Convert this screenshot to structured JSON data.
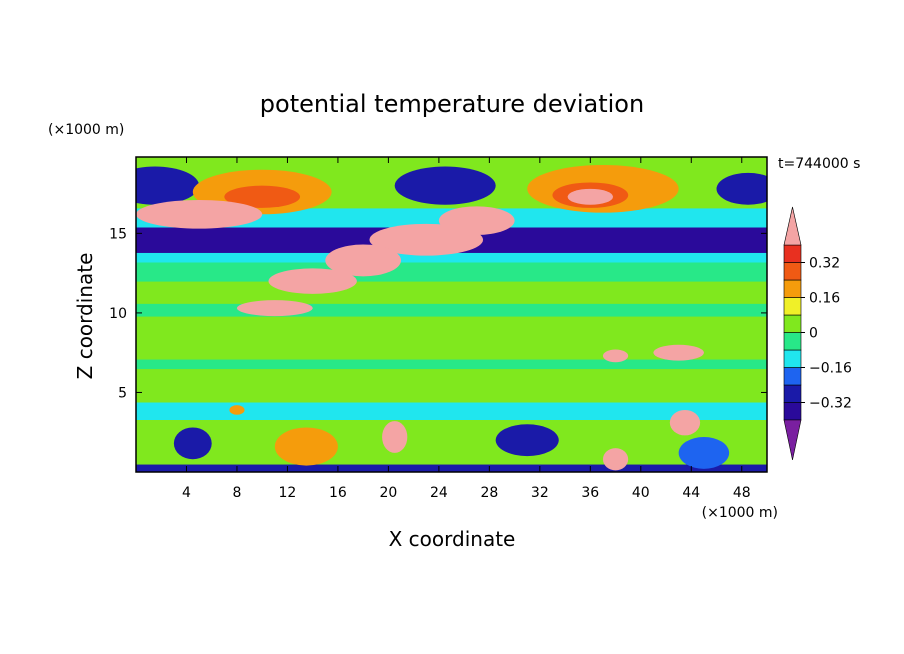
{
  "chart_data": {
    "type": "heatmap",
    "title": "potential temperature deviation",
    "time_label": "t=744000 s",
    "xlabel": "X coordinate",
    "ylabel": "Z coordinate",
    "x_unit": "(×1000 m)",
    "y_unit": "(×1000 m)",
    "xlim": [
      0,
      50
    ],
    "ylim": [
      0,
      19.8
    ],
    "x_ticks": [
      4,
      8,
      12,
      16,
      20,
      24,
      28,
      32,
      36,
      40,
      44,
      48
    ],
    "y_ticks": [
      5,
      10,
      15
    ],
    "colorbar": {
      "levels": [
        -0.4,
        -0.32,
        -0.24,
        -0.16,
        -0.08,
        0,
        0.08,
        0.16,
        0.24,
        0.32,
        0.4
      ],
      "tick_labels": [
        "0.32",
        "0.16",
        "0",
        "−0.16",
        "−0.32"
      ],
      "tick_values": [
        0.32,
        0.16,
        0,
        -0.16,
        -0.32
      ],
      "colors": [
        "#7a1fa0",
        "#2a0a9a",
        "#1a1aa8",
        "#1e64f0",
        "#20e6ee",
        "#28e888",
        "#80e81e",
        "#f0f028",
        "#f59c0c",
        "#f05a14",
        "#e83020",
        "#f4a4a4"
      ]
    },
    "bands": [
      {
        "z": [
          0,
          0.5
        ],
        "value": -0.3
      },
      {
        "z": [
          0.5,
          3.3
        ],
        "value": 0.05
      },
      {
        "z": [
          3.3,
          4.4
        ],
        "value": -0.1
      },
      {
        "z": [
          4.4,
          6.5
        ],
        "value": 0.06
      },
      {
        "z": [
          6.5,
          7.1
        ],
        "value": -0.06
      },
      {
        "z": [
          7.1,
          7.7
        ],
        "value": 0.02
      },
      {
        "z": [
          7.7,
          9.8
        ],
        "value": 0.06
      },
      {
        "z": [
          9.8,
          10.6
        ],
        "value": -0.03
      },
      {
        "z": [
          10.6,
          12.0
        ],
        "value": 0.06
      },
      {
        "z": [
          12.0,
          12.6
        ],
        "value": -0.07
      },
      {
        "z": [
          12.6,
          13.2
        ],
        "value": -0.02
      },
      {
        "z": [
          13.2,
          13.8
        ],
        "value": -0.1
      },
      {
        "z": [
          13.8,
          15.4
        ],
        "value": -0.34
      },
      {
        "z": [
          15.4,
          16.6
        ],
        "value": -0.14
      },
      {
        "z": [
          16.6,
          19.8
        ],
        "value": 0.06
      }
    ],
    "features": [
      {
        "x": 1.5,
        "z": 18.0,
        "rx": 3.5,
        "rz": 1.2,
        "value": -0.3
      },
      {
        "x": 24.5,
        "z": 18.0,
        "rx": 4.0,
        "rz": 1.2,
        "value": -0.3
      },
      {
        "x": 48.5,
        "z": 17.8,
        "rx": 2.5,
        "rz": 1.0,
        "value": -0.3
      },
      {
        "x": 10.0,
        "z": 17.6,
        "rx": 5.5,
        "rz": 1.4,
        "value": 0.18
      },
      {
        "x": 10.0,
        "z": 17.3,
        "rx": 3.0,
        "rz": 0.7,
        "value": 0.3
      },
      {
        "x": 37.0,
        "z": 17.8,
        "rx": 6.0,
        "rz": 1.5,
        "value": 0.18
      },
      {
        "x": 36.0,
        "z": 17.4,
        "rx": 3.0,
        "rz": 0.8,
        "value": 0.3
      },
      {
        "x": 36.0,
        "z": 17.3,
        "rx": 1.8,
        "rz": 0.5,
        "value": 0.4
      },
      {
        "x": 5.0,
        "z": 16.2,
        "rx": 5.0,
        "rz": 0.9,
        "value": 0.4
      },
      {
        "x": 27.0,
        "z": 15.8,
        "rx": 3.0,
        "rz": 0.9,
        "value": 0.4
      },
      {
        "x": 23.0,
        "z": 14.6,
        "rx": 4.5,
        "rz": 1.0,
        "value": 0.4
      },
      {
        "x": 18.0,
        "z": 13.3,
        "rx": 3.0,
        "rz": 1.0,
        "value": 0.4
      },
      {
        "x": 14.0,
        "z": 12.0,
        "rx": 3.5,
        "rz": 0.8,
        "value": 0.4
      },
      {
        "x": 11.0,
        "z": 10.3,
        "rx": 3.0,
        "rz": 0.5,
        "value": 0.4
      },
      {
        "x": 43.0,
        "z": 7.5,
        "rx": 2.0,
        "rz": 0.5,
        "value": 0.4
      },
      {
        "x": 38.0,
        "z": 7.3,
        "rx": 1.0,
        "rz": 0.4,
        "value": 0.4
      },
      {
        "x": 43.5,
        "z": 3.1,
        "rx": 1.2,
        "rz": 0.8,
        "value": 0.4
      },
      {
        "x": 20.5,
        "z": 2.2,
        "rx": 1.0,
        "rz": 1.0,
        "value": 0.4
      },
      {
        "x": 38.0,
        "z": 0.8,
        "rx": 1.0,
        "rz": 0.7,
        "value": 0.4
      },
      {
        "x": 4.5,
        "z": 1.8,
        "rx": 1.5,
        "rz": 1.0,
        "value": -0.3
      },
      {
        "x": 13.5,
        "z": 1.6,
        "rx": 2.5,
        "rz": 1.2,
        "value": 0.2
      },
      {
        "x": 31.0,
        "z": 2.0,
        "rx": 2.5,
        "rz": 1.0,
        "value": -0.3
      },
      {
        "x": 45.0,
        "z": 1.2,
        "rx": 2.0,
        "rz": 1.0,
        "value": -0.2
      },
      {
        "x": 8.0,
        "z": 3.9,
        "rx": 0.6,
        "rz": 0.3,
        "value": 0.18
      }
    ]
  }
}
